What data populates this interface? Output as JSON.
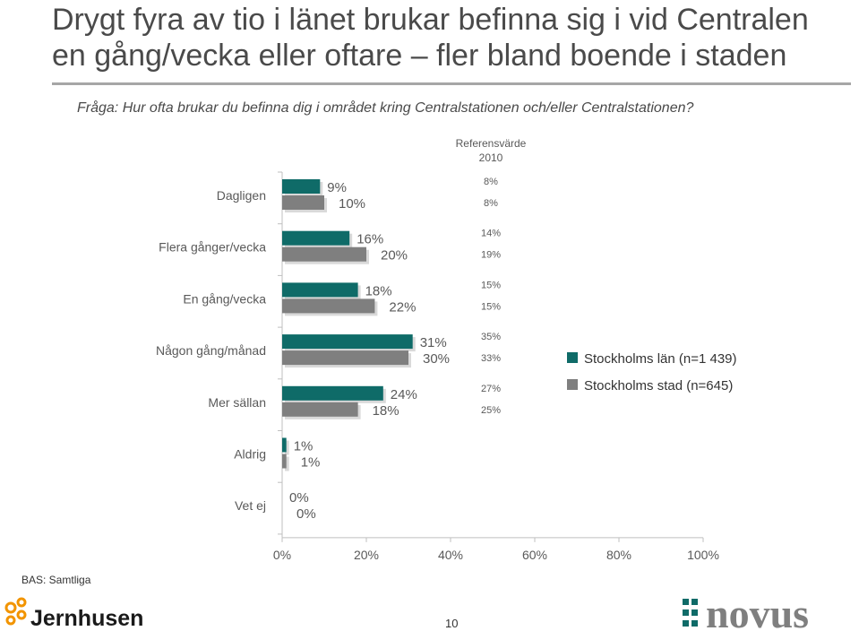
{
  "header": {
    "title_line1": "Drygt fyra av tio i länet brukar befinna sig i vid Centralen",
    "title_line2": "en gång/vecka eller oftare – fler bland boende i staden",
    "question": "Fråga: Hur ofta brukar du befinna dig i området kring Centralstationen och/eller Centralstationen?"
  },
  "chart_data": {
    "type": "bar",
    "orientation": "horizontal",
    "categories": [
      "Dagligen",
      "Flera gånger/vecka",
      "En gång/vecka",
      "Någon gång/månad",
      "Mer sällan",
      "Aldrig",
      "Vet ej"
    ],
    "series": [
      {
        "name": "Stockholms län (n=1 439)",
        "values": [
          9,
          16,
          18,
          31,
          24,
          1,
          0
        ],
        "labels": [
          "9%",
          "16%",
          "18%",
          "31%",
          "24%",
          "1%",
          "0%"
        ],
        "color": "#0f6b68"
      },
      {
        "name": "Stockholms stad (n=645)",
        "values": [
          10,
          20,
          22,
          30,
          18,
          1,
          0
        ],
        "labels": [
          "10%",
          "20%",
          "22%",
          "30%",
          "18%",
          "1%",
          "0%"
        ],
        "color": "#7f7f7f"
      }
    ],
    "xlim": [
      0,
      100
    ],
    "xticks": [
      "0%",
      "20%",
      "40%",
      "60%",
      "80%",
      "100%"
    ],
    "reference": {
      "title_line1": "Referensvärde",
      "title_line2": "2010",
      "values": [
        [
          "8%",
          "8%"
        ],
        [
          "14%",
          "19%"
        ],
        [
          "15%",
          "15%"
        ],
        [
          "35%",
          "33%"
        ],
        [
          "27%",
          "25%"
        ]
      ]
    },
    "legend_position": "right"
  },
  "footer": {
    "base": "BAS: Samtliga",
    "page": "10",
    "logo_left": "Jernhusen",
    "logo_right": "novus"
  },
  "colors": {
    "series1": "#0f6b68",
    "series2": "#7f7f7f",
    "title_rule": "#a6a6a6",
    "logo_orange": "#f29400"
  }
}
